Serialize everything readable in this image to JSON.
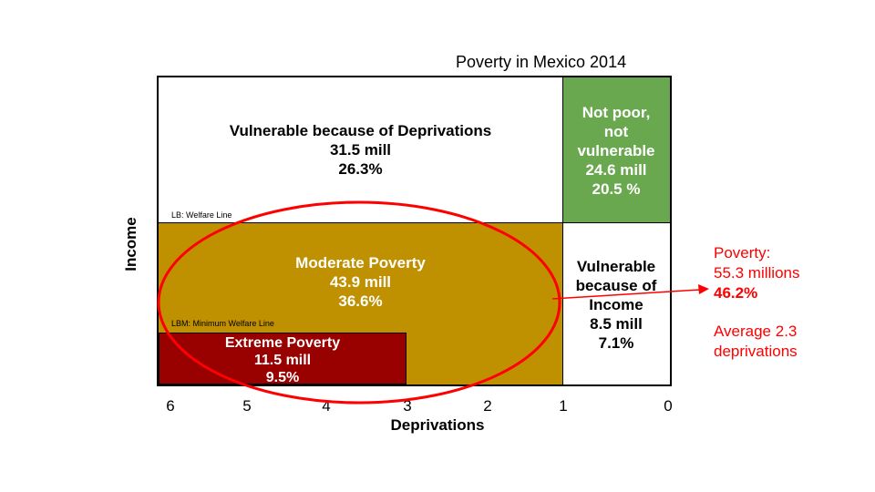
{
  "title": "Poverty in Mexico 2014",
  "regions": {
    "vulnerable_deprivations": {
      "line1": "Vulnerable because of Deprivations",
      "line2": "31.5 mill",
      "line3": "26.3%"
    },
    "not_poor": {
      "line1": "Not poor,",
      "line2": "not",
      "line3": "vulnerable",
      "line4": "24.6 mill",
      "line5": "20.5 %",
      "color": "#6aa84f"
    },
    "moderate": {
      "line1": "Moderate Poverty",
      "line2": "43.9 mill",
      "line3": "36.6%",
      "color": "#bf9000"
    },
    "vulnerable_income": {
      "line1": "Vulnerable",
      "line2": "because of",
      "line3": "Income",
      "line4": "8.5 mill",
      "line5": "7.1%"
    },
    "extreme": {
      "line1": "Extreme Poverty",
      "line2": "11.5 mill",
      "line3": "9.5%",
      "color": "#990000"
    }
  },
  "lines": {
    "welfare": "LB: Welfare Line",
    "minimum_welfare": "LBM: Minimum Welfare Line"
  },
  "axes": {
    "x_label": "Deprivations",
    "y_label": "Income",
    "x_ticks": [
      "6",
      "5",
      "4",
      "3",
      "2",
      "1",
      "0"
    ]
  },
  "annotation": {
    "line1": "Poverty:",
    "line2": "55.3 millions",
    "line3": "46.2%",
    "line4": "Average 2.3",
    "line5": "deprivations",
    "color": "#ff0000"
  }
}
